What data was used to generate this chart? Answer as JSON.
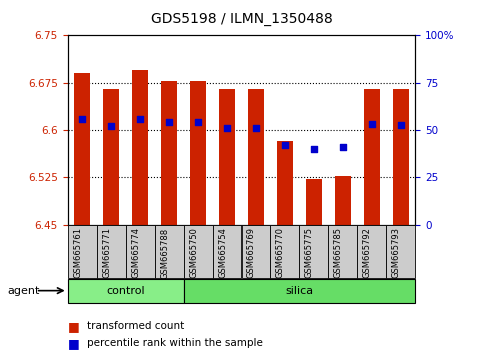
{
  "title": "GDS5198 / ILMN_1350488",
  "samples": [
    "GSM665761",
    "GSM665771",
    "GSM665774",
    "GSM665788",
    "GSM665750",
    "GSM665754",
    "GSM665769",
    "GSM665770",
    "GSM665775",
    "GSM665785",
    "GSM665792",
    "GSM665793"
  ],
  "groups": [
    "control",
    "control",
    "control",
    "control",
    "silica",
    "silica",
    "silica",
    "silica",
    "silica",
    "silica",
    "silica",
    "silica"
  ],
  "bar_tops": [
    6.69,
    6.665,
    6.695,
    6.678,
    6.678,
    6.665,
    6.665,
    6.583,
    6.523,
    6.528,
    6.665,
    6.665
  ],
  "bar_bottom": 6.45,
  "blue_dots_y": [
    6.617,
    6.607,
    6.617,
    6.613,
    6.613,
    6.603,
    6.603,
    6.577,
    6.57,
    6.573,
    6.61,
    6.608
  ],
  "ylim_left": [
    6.45,
    6.75
  ],
  "ylim_right": [
    0,
    100
  ],
  "yticks_left": [
    6.45,
    6.525,
    6.6,
    6.675,
    6.75
  ],
  "yticks_right": [
    0,
    25,
    50,
    75,
    100
  ],
  "ytick_labels_left": [
    "6.45",
    "6.525",
    "6.6",
    "6.675",
    "6.75"
  ],
  "ytick_labels_right": [
    "0",
    "25",
    "50",
    "75",
    "100%"
  ],
  "bar_color": "#cc2200",
  "dot_color": "#0000cc",
  "control_color": "#88ee88",
  "silica_color": "#66dd66",
  "tick_box_color": "#cccccc",
  "grid_color": "#000000",
  "agent_label": "agent",
  "control_label": "control",
  "silica_label": "silica",
  "legend_tc": "transformed count",
  "legend_pr": "percentile rank within the sample",
  "n_control": 4,
  "n_silica": 8
}
